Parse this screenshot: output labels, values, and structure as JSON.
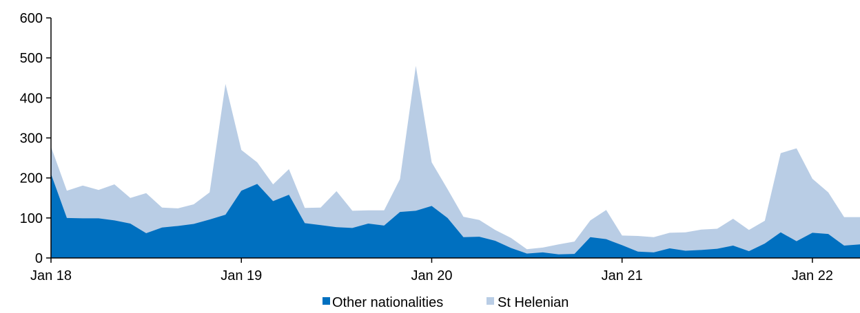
{
  "chart_data": {
    "type": "area",
    "stacked": true,
    "title": "",
    "xlabel": "",
    "ylabel": "",
    "ylim": [
      0,
      600
    ],
    "yticks": [
      "0",
      "100",
      "200",
      "300",
      "400",
      "500",
      "600"
    ],
    "xtick_labels": [
      "Jan 18",
      "Jan 19",
      "Jan 20",
      "Jan 21",
      "Jan 22"
    ],
    "x_start": "Jan 18",
    "x_end": "Apr 22",
    "grid": false,
    "legend_position": "bottom",
    "series": [
      {
        "name": "Other nationalities",
        "color": "#0070C0",
        "values": [
          210,
          100,
          99,
          99,
          94,
          86,
          62,
          76,
          80,
          85,
          96,
          108,
          168,
          185,
          142,
          158,
          87,
          82,
          77,
          75,
          86,
          81,
          115,
          118,
          130,
          100,
          52,
          53,
          43,
          25,
          11,
          14,
          9,
          10,
          52,
          47,
          32,
          16,
          14,
          24,
          18,
          20,
          23,
          31,
          17,
          36,
          64,
          42,
          63,
          60,
          31,
          34
        ]
      },
      {
        "name": "St Helenian",
        "color": "#B9CDE5",
        "values": [
          68,
          68,
          82,
          71,
          90,
          64,
          100,
          50,
          44,
          49,
          68,
          327,
          102,
          54,
          42,
          64,
          38,
          44,
          90,
          43,
          33,
          38,
          82,
          362,
          109,
          72,
          51,
          42,
          27,
          25,
          11,
          12,
          25,
          31,
          42,
          73,
          24,
          39,
          38,
          39,
          46,
          51,
          50,
          67,
          53,
          57,
          198,
          232,
          135,
          104,
          71,
          68
        ]
      }
    ]
  }
}
